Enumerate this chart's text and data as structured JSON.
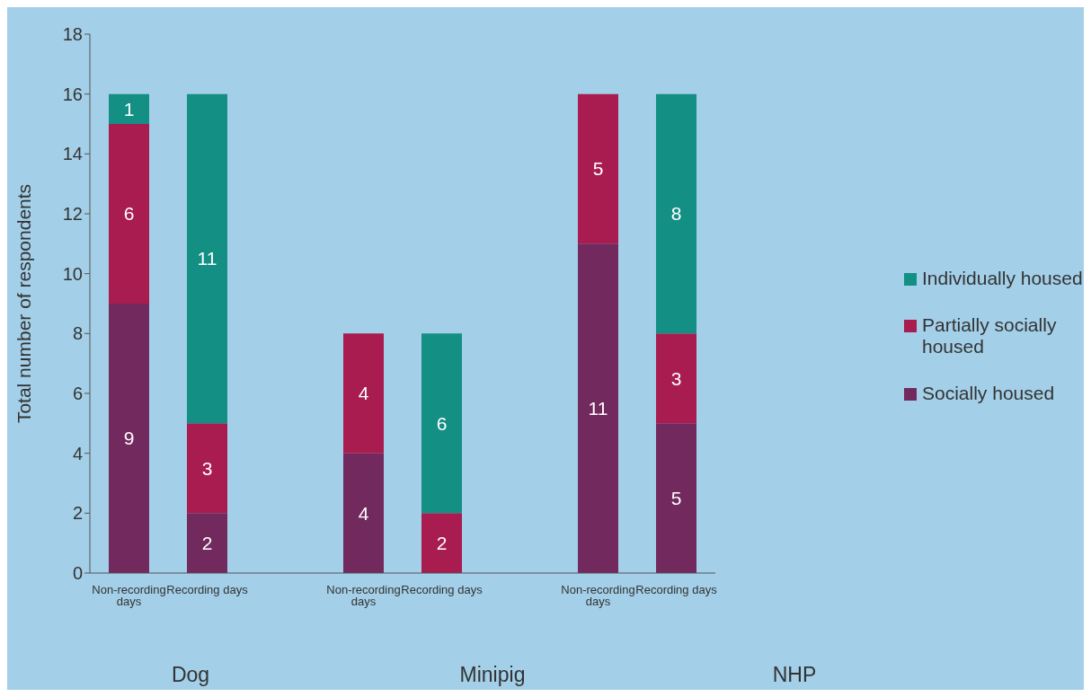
{
  "chart_data": {
    "type": "bar",
    "stacked": true,
    "ylabel": "Total number of respondents",
    "categories": [
      "Non-recording days",
      "Recording days",
      null,
      "Non-recording days",
      "Recording days",
      null,
      "Non-recording days",
      "Recording days"
    ],
    "series": [
      {
        "name": "Socially housed",
        "color": "#722a5e",
        "values": [
          9,
          2,
          null,
          4,
          null,
          null,
          11,
          5
        ]
      },
      {
        "name": "Partially socially housed",
        "color": "#a81c4f",
        "values": [
          6,
          3,
          null,
          4,
          2,
          null,
          5,
          3
        ]
      },
      {
        "name": "Individually housed",
        "color": "#138f84",
        "values": [
          1,
          11,
          null,
          null,
          6,
          null,
          null,
          8
        ]
      }
    ],
    "ylim": [
      0,
      18
    ],
    "yticks": [
      0,
      2,
      4,
      6,
      8,
      10,
      12,
      14,
      16,
      18
    ],
    "data_labels": true,
    "legend": "right",
    "grid": false,
    "annotations": [
      "Dog",
      "Minipig",
      "NHP"
    ]
  }
}
